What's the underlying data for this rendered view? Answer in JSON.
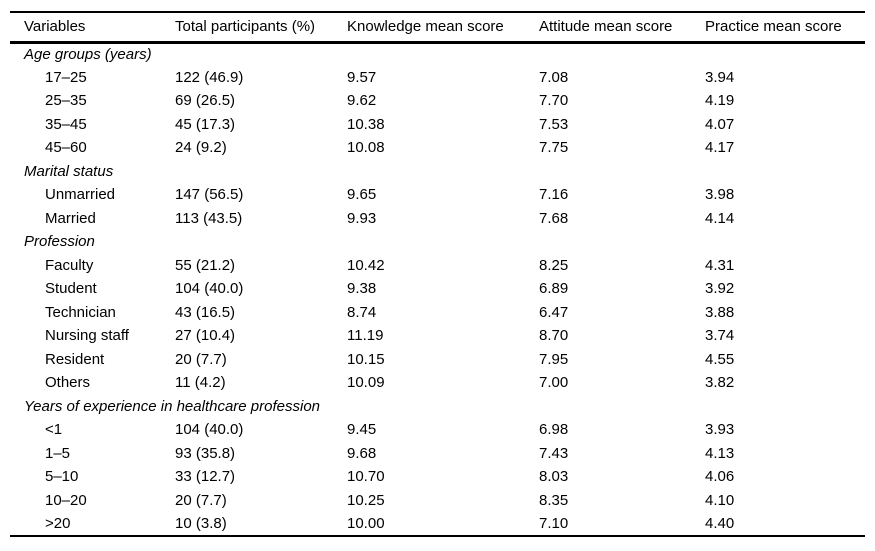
{
  "table": {
    "columns": [
      "Variables",
      "Total participants (%)",
      "Knowledge mean score",
      "Attitude mean score",
      "Practice mean score"
    ],
    "sections": [
      {
        "header": "Age groups (years)",
        "rows": [
          {
            "label": "17–25",
            "values": [
              "122 (46.9)",
              "9.57",
              "7.08",
              "3.94"
            ]
          },
          {
            "label": "25–35",
            "values": [
              "69 (26.5)",
              "9.62",
              "7.70",
              "4.19"
            ]
          },
          {
            "label": "35–45",
            "values": [
              "45 (17.3)",
              "10.38",
              "7.53",
              "4.07"
            ]
          },
          {
            "label": "45–60",
            "values": [
              "24 (9.2)",
              "10.08",
              "7.75",
              "4.17"
            ]
          }
        ]
      },
      {
        "header": "Marital status",
        "rows": [
          {
            "label": "Unmarried",
            "values": [
              "147 (56.5)",
              "9.65",
              "7.16",
              "3.98"
            ]
          },
          {
            "label": "Married",
            "values": [
              "113 (43.5)",
              "9.93",
              "7.68",
              "4.14"
            ]
          }
        ]
      },
      {
        "header": "Profession",
        "rows": [
          {
            "label": "Faculty",
            "values": [
              "55 (21.2)",
              "10.42",
              "8.25",
              "4.31"
            ]
          },
          {
            "label": "Student",
            "values": [
              "104 (40.0)",
              "9.38",
              "6.89",
              "3.92"
            ]
          },
          {
            "label": "Technician",
            "values": [
              "43 (16.5)",
              "8.74",
              "6.47",
              "3.88"
            ]
          },
          {
            "label": "Nursing staff",
            "values": [
              "27 (10.4)",
              "11.19",
              "8.70",
              "3.74"
            ]
          },
          {
            "label": "Resident",
            "values": [
              "20 (7.7)",
              "10.15",
              "7.95",
              "4.55"
            ]
          },
          {
            "label": "Others",
            "values": [
              "11 (4.2)",
              "10.09",
              "7.00",
              "3.82"
            ]
          }
        ]
      },
      {
        "header": "Years of experience in healthcare profession",
        "rows": [
          {
            "label": "<1",
            "values": [
              "104 (40.0)",
              "9.45",
              "6.98",
              "3.93"
            ]
          },
          {
            "label": "1–5",
            "values": [
              "93 (35.8)",
              "9.68",
              "7.43",
              "4.13"
            ]
          },
          {
            "label": "5–10",
            "values": [
              "33 (12.7)",
              "10.70",
              "8.03",
              "4.06"
            ]
          },
          {
            "label": "10–20",
            "values": [
              "20 (7.7)",
              "10.25",
              "8.35",
              "4.10"
            ]
          },
          {
            "label": ">20",
            "values": [
              "10 (3.8)",
              "10.00",
              "7.10",
              "4.40"
            ]
          }
        ]
      }
    ]
  }
}
